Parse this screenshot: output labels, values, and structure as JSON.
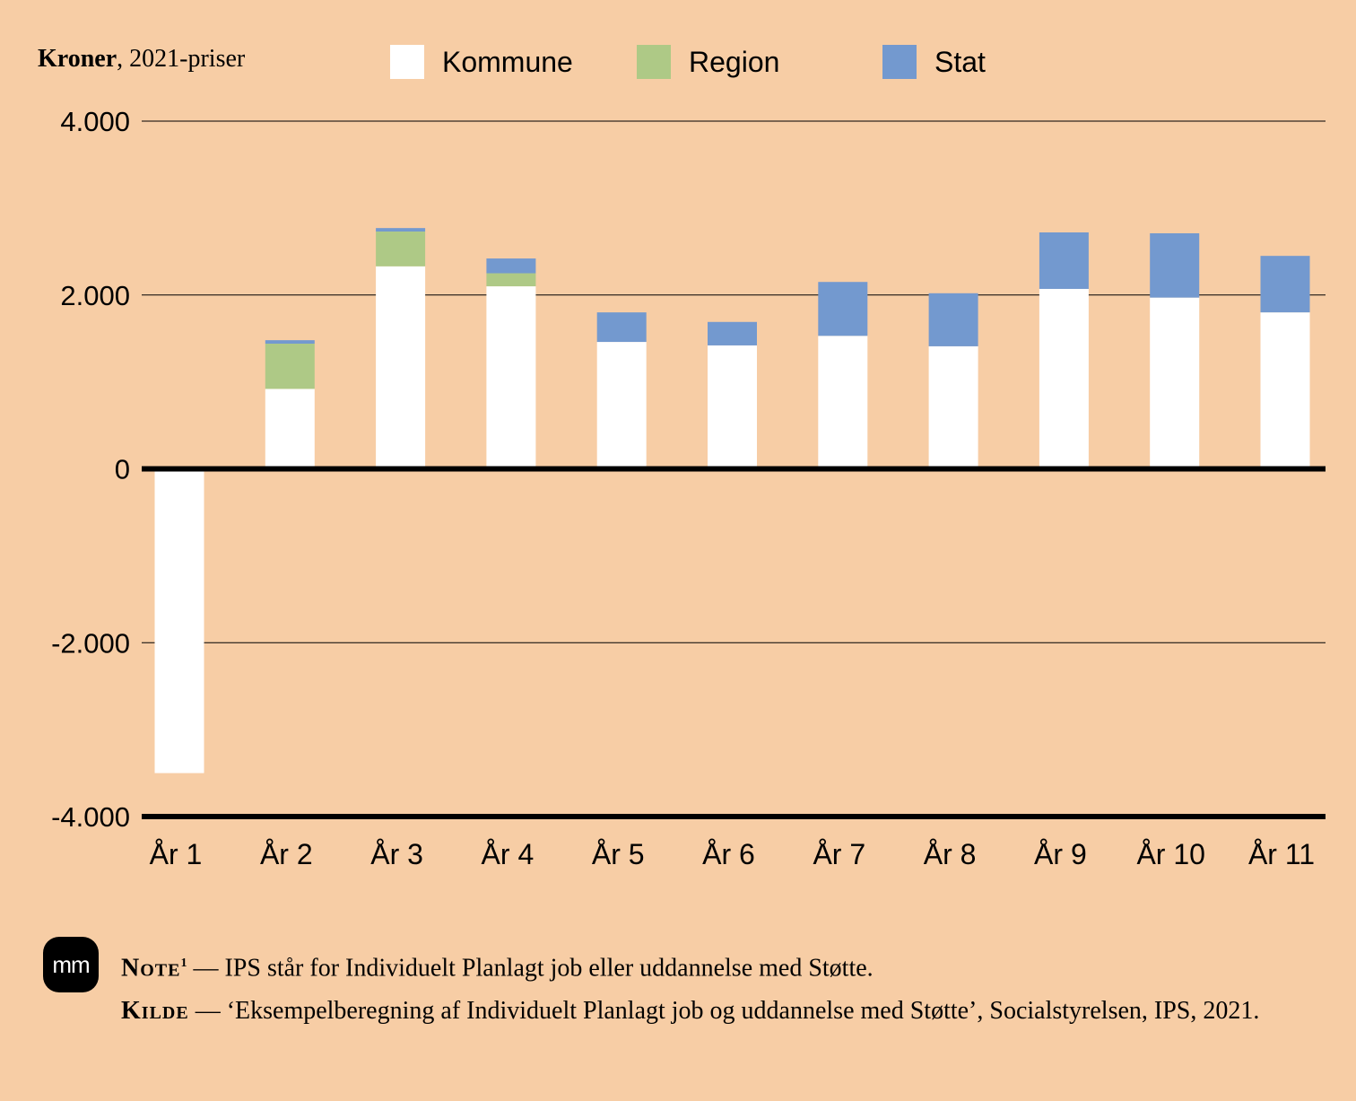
{
  "header": {
    "unit_bold": "Kroner",
    "unit_rest": ", 2021-priser"
  },
  "legend": [
    {
      "name": "Kommune",
      "color": "#ffffff"
    },
    {
      "name": "Region",
      "color": "#aec986"
    },
    {
      "name": "Stat",
      "color": "#7399cf"
    }
  ],
  "chart_data": {
    "type": "bar",
    "stacked": true,
    "categories": [
      "År 1",
      "År 2",
      "År 3",
      "År 4",
      "År 5",
      "År 6",
      "År 7",
      "År 8",
      "År 9",
      "År 10",
      "År 11"
    ],
    "series": [
      {
        "name": "Kommune",
        "values": [
          -3500,
          920,
          2330,
          2100,
          1460,
          1420,
          1530,
          1410,
          2070,
          1970,
          1800
        ]
      },
      {
        "name": "Region",
        "values": [
          0,
          520,
          400,
          150,
          0,
          0,
          0,
          0,
          0,
          0,
          0
        ]
      },
      {
        "name": "Stat",
        "values": [
          0,
          40,
          40,
          170,
          340,
          270,
          620,
          610,
          650,
          740,
          650
        ]
      }
    ],
    "ylim": [
      -4000,
      4000
    ],
    "yticks": [
      4000,
      2000,
      0,
      -2000,
      -4000
    ],
    "ytick_labels": [
      "4.000",
      "2.000",
      "0",
      "-2.000",
      "-4.000"
    ],
    "grid": true
  },
  "footer": {
    "logo": "mm",
    "note_label": "Note",
    "note_sup": "1",
    "note_text": " — IPS står for Individuelt Planlagt job eller uddannelse med Støtte.",
    "source_label": "Kilde",
    "source_text": " — ‘Eksempelberegning af Individuelt Planlagt job og uddannelse med Støtte’, Socialstyrelsen, IPS, 2021."
  }
}
